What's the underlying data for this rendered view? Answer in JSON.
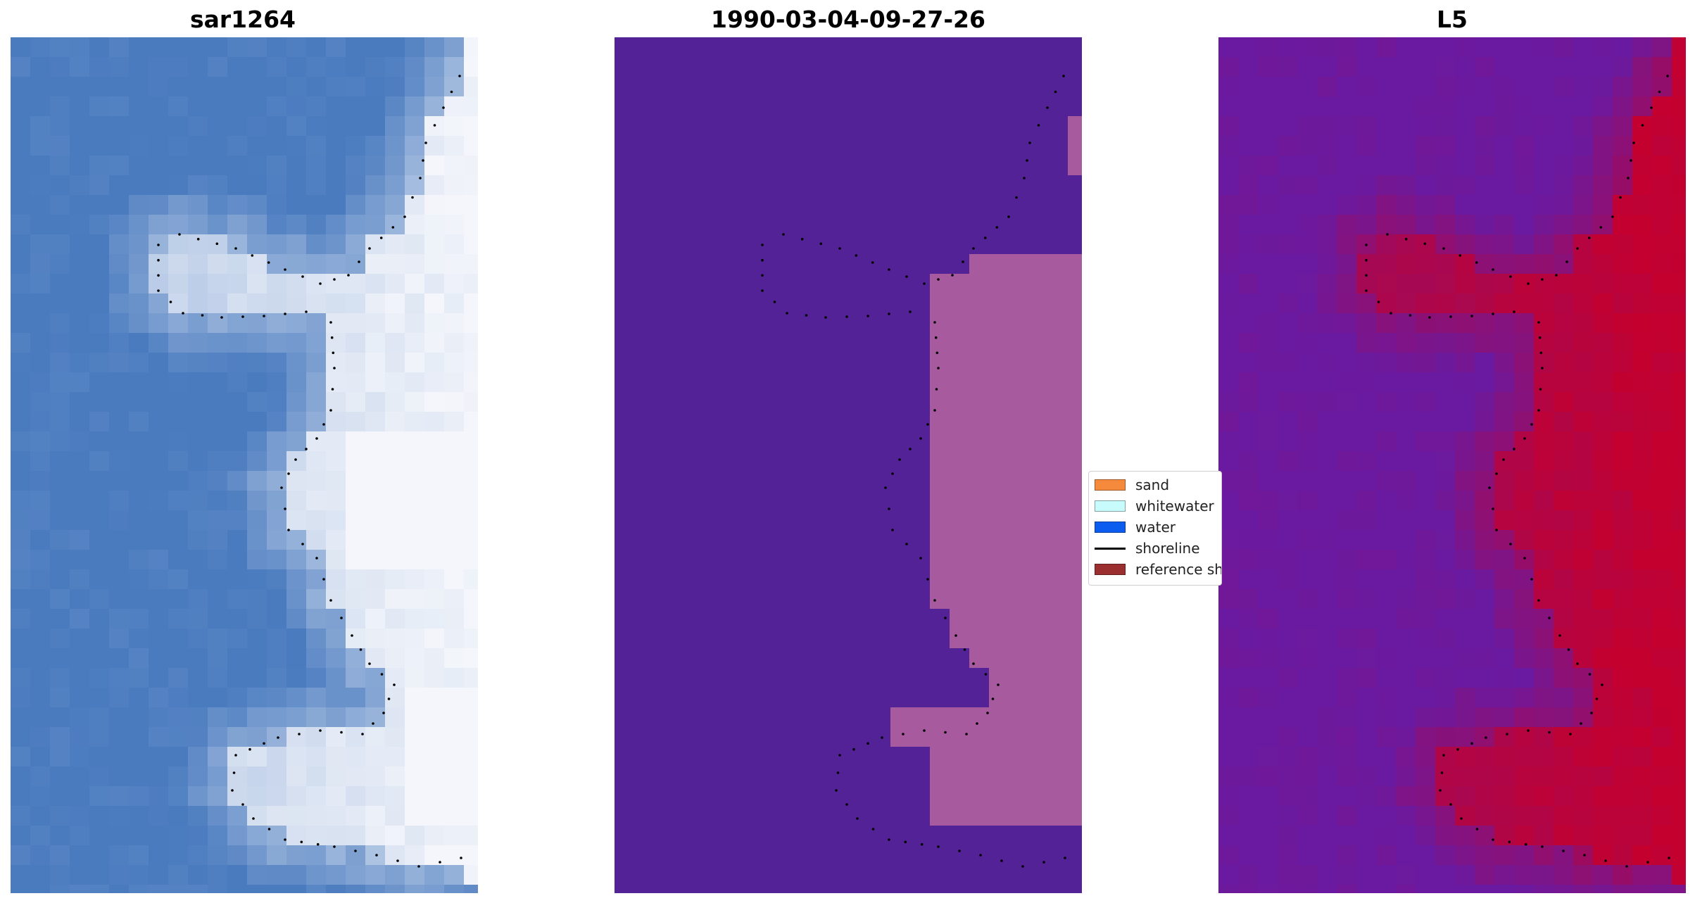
{
  "panels": [
    {
      "id": "sar",
      "title": "sar1264"
    },
    {
      "id": "class",
      "title": "1990-03-04-09-27-26"
    },
    {
      "id": "index",
      "title": "L5"
    }
  ],
  "legend": {
    "items": [
      {
        "label": "sand",
        "color": "#f58a3c",
        "kind": "patch"
      },
      {
        "label": "whitewater",
        "color": "#c8fbfb",
        "kind": "patch"
      },
      {
        "label": "water",
        "color": "#0c5cf0",
        "kind": "patch"
      },
      {
        "label": "shoreline",
        "color": "#000000",
        "kind": "line"
      },
      {
        "label": "reference shoreline",
        "color": "#9b2f2f",
        "kind": "patch"
      }
    ]
  },
  "colors": {
    "water_class": "#532296",
    "shore_class": "#a85a9e",
    "sar_water": "#4a7bbf",
    "sar_bright": "#f4f6fb",
    "index_low": "#6a1aa0",
    "index_high": "#c4002e"
  }
}
